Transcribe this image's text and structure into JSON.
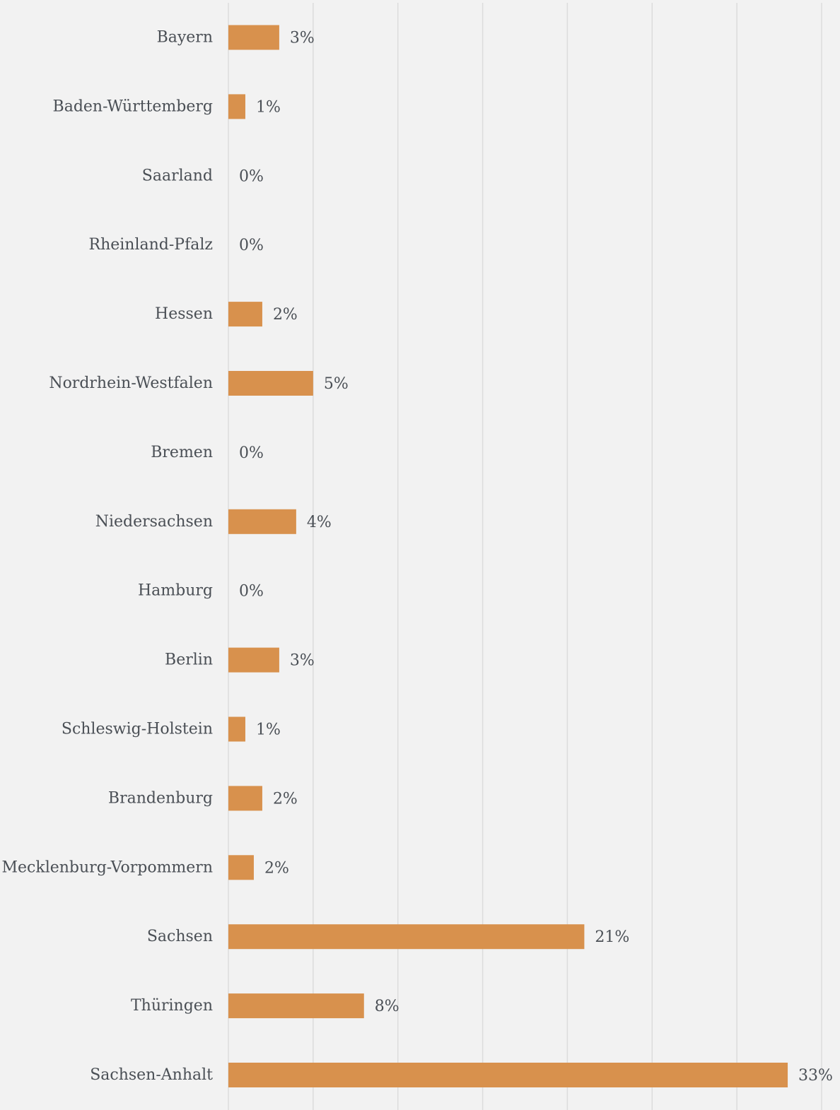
{
  "chart_data": {
    "type": "bar",
    "orientation": "horizontal",
    "categories": [
      "Bayern",
      "Baden-Württemberg",
      "Saarland",
      "Rheinland-Pfalz",
      "Hessen",
      "Nordrhein-Westfalen",
      "Bremen",
      "Niedersachsen",
      "Hamburg",
      "Berlin",
      "Schleswig-Holstein",
      "Brandenburg",
      "Mecklenburg-Vorpommern",
      "Sachsen",
      "Thüringen",
      "Sachsen-Anhalt"
    ],
    "values": [
      3,
      1,
      0,
      0,
      2,
      5,
      0,
      4,
      0,
      3,
      1,
      2,
      1.5,
      21,
      8,
      33
    ],
    "value_labels": [
      "3%",
      "1%",
      "0%",
      "0%",
      "2%",
      "5%",
      "0%",
      "4%",
      "0%",
      "3%",
      "1%",
      "2%",
      "2%",
      "21%",
      "8%",
      "33%"
    ],
    "title": "",
    "xlabel": "",
    "ylabel": "",
    "xlim": [
      0,
      35
    ],
    "x_gridlines": [
      0,
      5,
      10,
      15,
      20,
      25,
      30,
      35
    ],
    "grid": true,
    "legend": "none",
    "bar_color": "#d8914d",
    "grid_color": "#dcdcdc",
    "text_color": "#4a4f55",
    "background": "#f2f2f2"
  }
}
